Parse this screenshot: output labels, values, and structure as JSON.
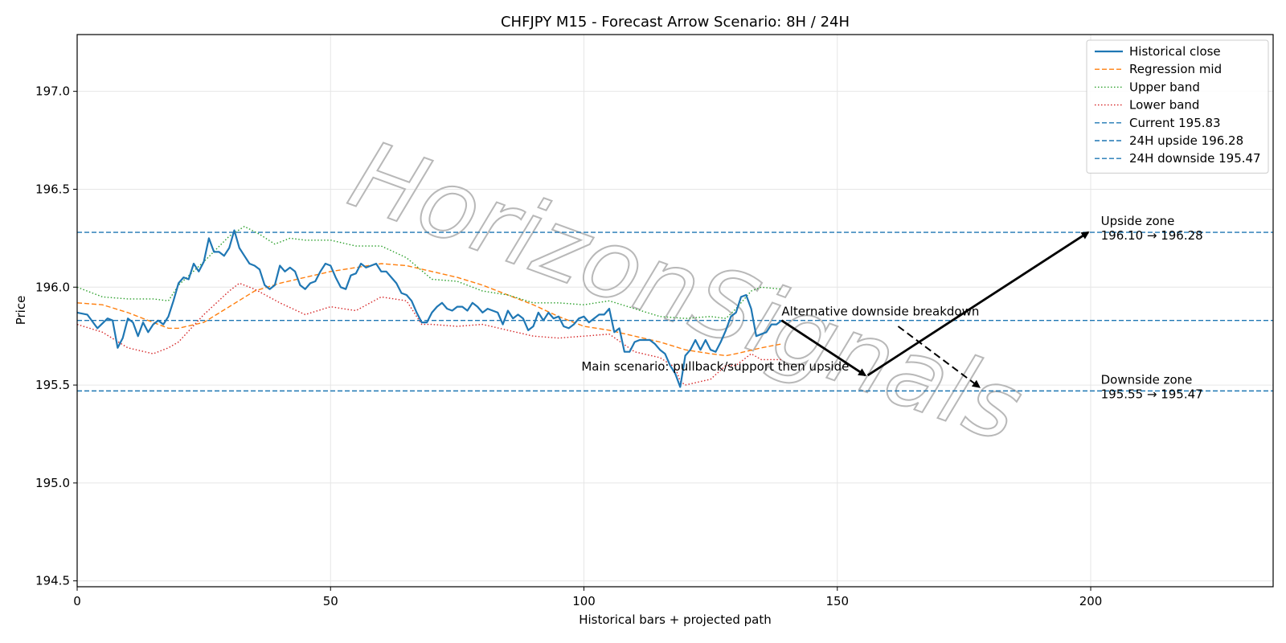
{
  "chart_data": {
    "type": "line",
    "title": "CHFJPY M15 - Forecast Arrow Scenario: 8H / 24H",
    "xlabel": "Historical bars + projected path",
    "ylabel": "Price",
    "xlim": [
      0,
      236
    ],
    "ylim": [
      194.47,
      197.29
    ],
    "x_ticks": [
      0,
      50,
      100,
      150,
      200
    ],
    "y_ticks": [
      194.5,
      195.0,
      195.5,
      196.0,
      196.5,
      197.0
    ],
    "x_tick_labels": [
      "0",
      "50",
      "100",
      "150",
      "200"
    ],
    "y_tick_labels": [
      "194.5",
      "195.0",
      "195.5",
      "196.0",
      "196.5",
      "197.0"
    ],
    "grid": true,
    "legend_position": "top-right",
    "series": [
      {
        "name": "Historical close",
        "color": "#1f77b4",
        "style": "solid",
        "points": [
          [
            0,
            195.87
          ],
          [
            2,
            195.86
          ],
          [
            4,
            195.79
          ],
          [
            6,
            195.84
          ],
          [
            7,
            195.83
          ],
          [
            8,
            195.69
          ],
          [
            9,
            195.74
          ],
          [
            10,
            195.84
          ],
          [
            11,
            195.82
          ],
          [
            12,
            195.75
          ],
          [
            13,
            195.82
          ],
          [
            14,
            195.77
          ],
          [
            15,
            195.81
          ],
          [
            16,
            195.83
          ],
          [
            17,
            195.81
          ],
          [
            18,
            195.85
          ],
          [
            19,
            195.93
          ],
          [
            20,
            196.02
          ],
          [
            21,
            196.05
          ],
          [
            22,
            196.04
          ],
          [
            23,
            196.12
          ],
          [
            24,
            196.08
          ],
          [
            25,
            196.13
          ],
          [
            26,
            196.25
          ],
          [
            27,
            196.18
          ],
          [
            28,
            196.18
          ],
          [
            29,
            196.16
          ],
          [
            30,
            196.2
          ],
          [
            31,
            196.29
          ],
          [
            32,
            196.2
          ],
          [
            33,
            196.16
          ],
          [
            34,
            196.12
          ],
          [
            35,
            196.11
          ],
          [
            36,
            196.09
          ],
          [
            37,
            196.01
          ],
          [
            38,
            195.99
          ],
          [
            39,
            196.01
          ],
          [
            40,
            196.11
          ],
          [
            41,
            196.08
          ],
          [
            42,
            196.1
          ],
          [
            43,
            196.08
          ],
          [
            44,
            196.01
          ],
          [
            45,
            195.99
          ],
          [
            46,
            196.02
          ],
          [
            47,
            196.03
          ],
          [
            48,
            196.08
          ],
          [
            49,
            196.12
          ],
          [
            50,
            196.11
          ],
          [
            51,
            196.05
          ],
          [
            52,
            196.0
          ],
          [
            53,
            195.99
          ],
          [
            54,
            196.06
          ],
          [
            55,
            196.07
          ],
          [
            56,
            196.12
          ],
          [
            57,
            196.1
          ],
          [
            58,
            196.11
          ],
          [
            59,
            196.12
          ],
          [
            60,
            196.08
          ],
          [
            61,
            196.08
          ],
          [
            62,
            196.05
          ],
          [
            63,
            196.02
          ],
          [
            64,
            195.97
          ],
          [
            65,
            195.96
          ],
          [
            66,
            195.93
          ],
          [
            67,
            195.87
          ],
          [
            68,
            195.82
          ],
          [
            69,
            195.82
          ],
          [
            70,
            195.87
          ],
          [
            71,
            195.9
          ],
          [
            72,
            195.92
          ],
          [
            73,
            195.89
          ],
          [
            74,
            195.88
          ],
          [
            75,
            195.9
          ],
          [
            76,
            195.9
          ],
          [
            77,
            195.88
          ],
          [
            78,
            195.92
          ],
          [
            79,
            195.9
          ],
          [
            80,
            195.87
          ],
          [
            81,
            195.89
          ],
          [
            82,
            195.88
          ],
          [
            83,
            195.87
          ],
          [
            84,
            195.81
          ],
          [
            85,
            195.88
          ],
          [
            86,
            195.84
          ],
          [
            87,
            195.86
          ],
          [
            88,
            195.84
          ],
          [
            89,
            195.78
          ],
          [
            90,
            195.8
          ],
          [
            91,
            195.87
          ],
          [
            92,
            195.83
          ],
          [
            93,
            195.87
          ],
          [
            94,
            195.84
          ],
          [
            95,
            195.85
          ],
          [
            96,
            195.8
          ],
          [
            97,
            195.79
          ],
          [
            98,
            195.81
          ],
          [
            99,
            195.84
          ],
          [
            100,
            195.85
          ],
          [
            101,
            195.82
          ],
          [
            102,
            195.84
          ],
          [
            103,
            195.86
          ],
          [
            104,
            195.86
          ],
          [
            105,
            195.89
          ],
          [
            106,
            195.77
          ],
          [
            107,
            195.79
          ],
          [
            108,
            195.67
          ],
          [
            109,
            195.67
          ],
          [
            110,
            195.72
          ],
          [
            111,
            195.73
          ],
          [
            112,
            195.73
          ],
          [
            113,
            195.73
          ],
          [
            114,
            195.71
          ],
          [
            115,
            195.68
          ],
          [
            116,
            195.66
          ],
          [
            117,
            195.6
          ],
          [
            118,
            195.56
          ],
          [
            119,
            195.49
          ],
          [
            120,
            195.65
          ],
          [
            121,
            195.68
          ],
          [
            122,
            195.73
          ],
          [
            123,
            195.68
          ],
          [
            124,
            195.73
          ],
          [
            125,
            195.68
          ],
          [
            126,
            195.67
          ],
          [
            127,
            195.72
          ],
          [
            128,
            195.78
          ],
          [
            129,
            195.85
          ],
          [
            130,
            195.87
          ],
          [
            131,
            195.95
          ],
          [
            132,
            195.96
          ],
          [
            133,
            195.89
          ],
          [
            134,
            195.75
          ],
          [
            135,
            195.76
          ],
          [
            136,
            195.77
          ],
          [
            137,
            195.81
          ],
          [
            138,
            195.81
          ],
          [
            139,
            195.83
          ]
        ]
      },
      {
        "name": "Regression mid",
        "color": "#ff7f0e",
        "style": "dashed",
        "points": [
          [
            0,
            195.92
          ],
          [
            5,
            195.91
          ],
          [
            10,
            195.87
          ],
          [
            15,
            195.82
          ],
          [
            18,
            195.79
          ],
          [
            20,
            195.79
          ],
          [
            25,
            195.82
          ],
          [
            30,
            195.9
          ],
          [
            35,
            195.98
          ],
          [
            40,
            196.02
          ],
          [
            45,
            196.05
          ],
          [
            50,
            196.08
          ],
          [
            55,
            196.1
          ],
          [
            60,
            196.12
          ],
          [
            65,
            196.11
          ],
          [
            70,
            196.08
          ],
          [
            75,
            196.05
          ],
          [
            80,
            196.01
          ],
          [
            85,
            195.96
          ],
          [
            90,
            195.91
          ],
          [
            95,
            195.85
          ],
          [
            100,
            195.8
          ],
          [
            105,
            195.78
          ],
          [
            110,
            195.75
          ],
          [
            115,
            195.72
          ],
          [
            120,
            195.68
          ],
          [
            125,
            195.66
          ],
          [
            128,
            195.65
          ],
          [
            130,
            195.66
          ],
          [
            135,
            195.69
          ],
          [
            139,
            195.71
          ]
        ]
      },
      {
        "name": "Upper band",
        "color": "#2ca02c",
        "style": "dotted",
        "points": [
          [
            0,
            196.0
          ],
          [
            5,
            195.95
          ],
          [
            10,
            195.94
          ],
          [
            15,
            195.94
          ],
          [
            18,
            195.93
          ],
          [
            20,
            196.01
          ],
          [
            25,
            196.13
          ],
          [
            30,
            196.26
          ],
          [
            33,
            196.31
          ],
          [
            36,
            196.27
          ],
          [
            39,
            196.22
          ],
          [
            42,
            196.25
          ],
          [
            45,
            196.24
          ],
          [
            50,
            196.24
          ],
          [
            55,
            196.21
          ],
          [
            60,
            196.21
          ],
          [
            65,
            196.15
          ],
          [
            70,
            196.04
          ],
          [
            75,
            196.03
          ],
          [
            80,
            195.98
          ],
          [
            85,
            195.96
          ],
          [
            90,
            195.92
          ],
          [
            95,
            195.92
          ],
          [
            100,
            195.91
          ],
          [
            105,
            195.93
          ],
          [
            110,
            195.89
          ],
          [
            115,
            195.85
          ],
          [
            120,
            195.84
          ],
          [
            125,
            195.85
          ],
          [
            128,
            195.84
          ],
          [
            130,
            195.89
          ],
          [
            133,
            195.98
          ],
          [
            135,
            196.0
          ],
          [
            139,
            195.99
          ]
        ]
      },
      {
        "name": "Lower band",
        "color": "#d62728",
        "style": "dotted",
        "points": [
          [
            0,
            195.81
          ],
          [
            5,
            195.77
          ],
          [
            10,
            195.69
          ],
          [
            15,
            195.66
          ],
          [
            18,
            195.69
          ],
          [
            20,
            195.72
          ],
          [
            25,
            195.86
          ],
          [
            30,
            195.98
          ],
          [
            32,
            196.02
          ],
          [
            35,
            195.99
          ],
          [
            40,
            195.92
          ],
          [
            45,
            195.86
          ],
          [
            50,
            195.9
          ],
          [
            55,
            195.88
          ],
          [
            60,
            195.95
          ],
          [
            65,
            195.93
          ],
          [
            68,
            195.81
          ],
          [
            70,
            195.81
          ],
          [
            75,
            195.8
          ],
          [
            80,
            195.81
          ],
          [
            85,
            195.78
          ],
          [
            90,
            195.75
          ],
          [
            95,
            195.74
          ],
          [
            100,
            195.75
          ],
          [
            105,
            195.76
          ],
          [
            110,
            195.67
          ],
          [
            115,
            195.64
          ],
          [
            118,
            195.59
          ],
          [
            119,
            195.52
          ],
          [
            120,
            195.5
          ],
          [
            125,
            195.53
          ],
          [
            128,
            195.6
          ],
          [
            130,
            195.6
          ],
          [
            133,
            195.66
          ],
          [
            135,
            195.63
          ],
          [
            139,
            195.63
          ]
        ]
      }
    ],
    "hlines": [
      {
        "name": "Current 195.83",
        "value": 195.83,
        "color": "#1f77b4",
        "style": "dashed"
      },
      {
        "name": "24H upside 196.28",
        "value": 196.28,
        "color": "#1f77b4",
        "style": "dashed"
      },
      {
        "name": "24H downside 195.47",
        "value": 195.47,
        "color": "#1f77b4",
        "style": "dashed"
      }
    ],
    "arrows": [
      {
        "name": "main-leg-1",
        "from": [
          139,
          195.83
        ],
        "to": [
          155.5,
          195.55
        ],
        "style": "solid"
      },
      {
        "name": "main-leg-2",
        "from": [
          156,
          195.55
        ],
        "to": [
          199.5,
          196.28
        ],
        "style": "solid"
      },
      {
        "name": "alternative",
        "from": [
          162,
          195.8
        ],
        "to": [
          178,
          195.49
        ],
        "style": "dashed"
      }
    ],
    "annotations": [
      {
        "id": "alt",
        "text": "Alternative downside breakdown",
        "x": 139,
        "y": 195.83
      },
      {
        "id": "main",
        "text": "Main scenario: pullback/support then upside",
        "x": 99.5,
        "y": 195.55
      },
      {
        "id": "upside",
        "lines": [
          "Upside zone",
          "196.10 → 196.28"
        ],
        "x": 202,
        "y": 196.28
      },
      {
        "id": "downside",
        "lines": [
          "Downside zone",
          "195.55 → 195.47"
        ],
        "x": 202,
        "y": 195.47
      }
    ],
    "watermark": "HorizonSignals"
  }
}
